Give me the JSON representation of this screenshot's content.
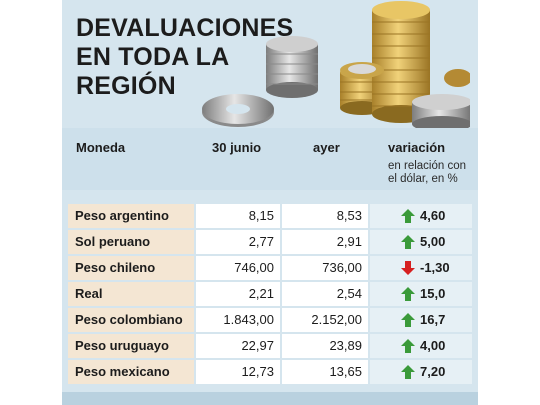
{
  "title": {
    "line1": "DEVALUACIONES",
    "line2": "EN TODA LA",
    "line3": "REGIÓN"
  },
  "table": {
    "headers": {
      "moneda": "Moneda",
      "col1": "30 junio",
      "col2": "ayer",
      "variacion": "variación",
      "variacion_sub1": "en relación con",
      "variacion_sub2": "el dólar, en %"
    },
    "rows": [
      {
        "moneda": "Peso argentino",
        "junio": "8,15",
        "ayer": "8,53",
        "variacion": "4,60",
        "direction": "up"
      },
      {
        "moneda": "Sol peruano",
        "junio": "2,77",
        "ayer": "2,91",
        "variacion": "5,00",
        "direction": "up"
      },
      {
        "moneda": "Peso chileno",
        "junio": "746,00",
        "ayer": "736,00",
        "variacion": "-1,30",
        "direction": "down"
      },
      {
        "moneda": "Real",
        "junio": "2,21",
        "ayer": "2,54",
        "variacion": "15,0",
        "direction": "up"
      },
      {
        "moneda": "Peso colombiano",
        "junio": "1.843,00",
        "ayer": "2.152,00",
        "variacion": "16,7",
        "direction": "up"
      },
      {
        "moneda": "Peso uruguayo",
        "junio": "22,97",
        "ayer": "23,89",
        "variacion": "4,00",
        "direction": "up"
      },
      {
        "moneda": "Peso mexicano",
        "junio": "12,73",
        "ayer": "13,65",
        "variacion": "7,20",
        "direction": "up"
      }
    ]
  },
  "colors": {
    "up": "#3a9a3a",
    "down": "#d62020",
    "panel": "#d5e5ee"
  }
}
